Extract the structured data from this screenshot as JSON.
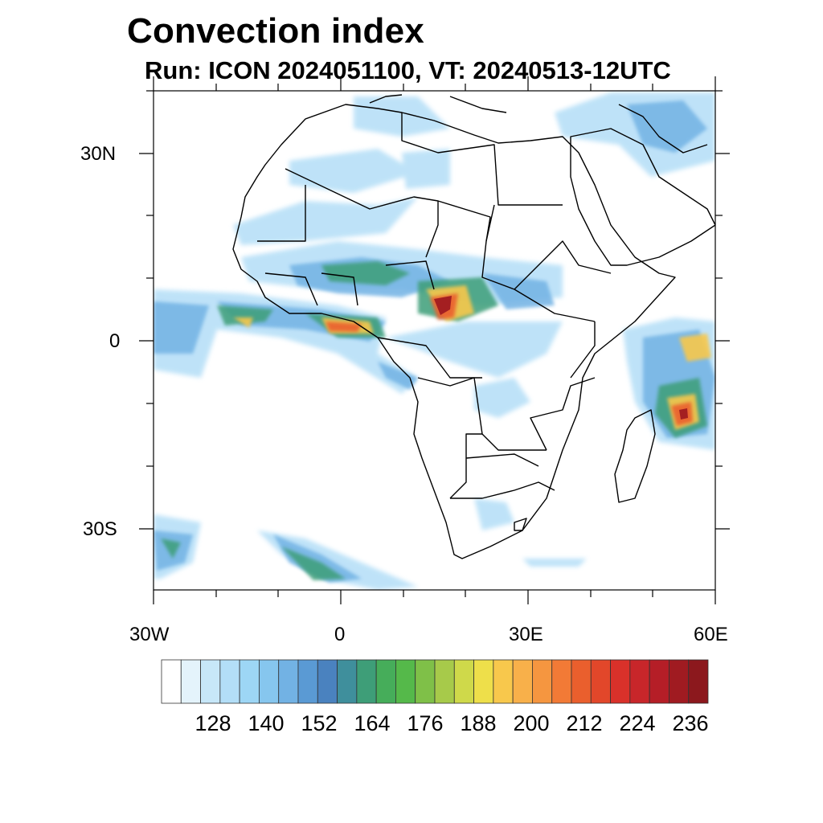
{
  "header": {
    "title": "Convection index",
    "subtitle": "Run: ICON 2024051100,  VT: 20240513-12UTC"
  },
  "axes": {
    "lat_ticks": [
      "30N",
      "0",
      "30S"
    ],
    "lon_ticks": [
      "30W",
      "0",
      "30E",
      "60E"
    ]
  },
  "colorbar": {
    "colors": [
      "#ffffff",
      "#e4f3fb",
      "#c7e7f8",
      "#b3def7",
      "#9dd6f5",
      "#86c6ee",
      "#72b2e4",
      "#5a9ad4",
      "#4a82bf",
      "#3f8f9c",
      "#3e9e78",
      "#46ad5a",
      "#55b94a",
      "#7fc048",
      "#a7ca4a",
      "#cfd94a",
      "#eedf4a",
      "#f8c84c",
      "#f8b04a",
      "#f59640",
      "#f27a36",
      "#ea5f2d",
      "#e2472a",
      "#d9312a",
      "#c8262a",
      "#b51e27",
      "#a01b21",
      "#8c181d"
    ],
    "labels": [
      "128",
      "140",
      "152",
      "164",
      "176",
      "188",
      "200",
      "212",
      "224",
      "236"
    ]
  }
}
